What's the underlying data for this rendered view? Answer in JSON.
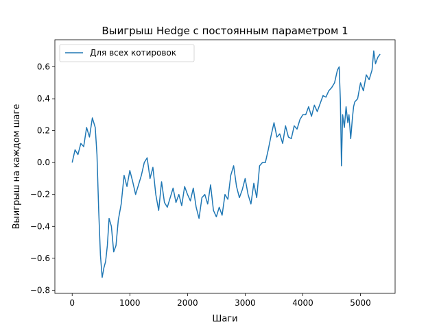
{
  "chart_data": {
    "type": "line",
    "title": "Выигрыш Hedge с постоянным параметром 1",
    "xlabel": "Шаги",
    "ylabel": "Выигрыш на каждом шаге",
    "xlim": [
      -300,
      5600
    ],
    "ylim": [
      -0.82,
      0.77
    ],
    "xticks": [
      0,
      1000,
      2000,
      3000,
      4000,
      5000
    ],
    "yticks": [
      -0.8,
      -0.6,
      -0.4,
      -0.2,
      0.0,
      0.2,
      0.4,
      0.6
    ],
    "ytick_labels": [
      "−0.8",
      "−0.6",
      "−0.4",
      "−0.2",
      "0.0",
      "0.2",
      "0.4",
      "0.6"
    ],
    "grid": false,
    "legend_position": "upper-left",
    "series": [
      {
        "name": "Для всех котировок",
        "color": "#1f77b4",
        "x": [
          0,
          50,
          100,
          150,
          200,
          250,
          300,
          350,
          400,
          430,
          460,
          490,
          520,
          550,
          580,
          610,
          640,
          680,
          720,
          760,
          800,
          850,
          900,
          950,
          1000,
          1050,
          1100,
          1150,
          1200,
          1250,
          1300,
          1350,
          1400,
          1450,
          1500,
          1550,
          1600,
          1650,
          1700,
          1750,
          1800,
          1850,
          1900,
          1950,
          2000,
          2050,
          2100,
          2150,
          2200,
          2250,
          2300,
          2350,
          2400,
          2450,
          2500,
          2550,
          2600,
          2650,
          2700,
          2750,
          2800,
          2850,
          2900,
          2950,
          3000,
          3050,
          3100,
          3150,
          3200,
          3250,
          3300,
          3350,
          3400,
          3450,
          3500,
          3550,
          3600,
          3650,
          3700,
          3750,
          3800,
          3850,
          3900,
          3950,
          4000,
          4050,
          4100,
          4150,
          4200,
          4250,
          4300,
          4350,
          4400,
          4450,
          4500,
          4550,
          4600,
          4630,
          4650,
          4660,
          4670,
          4690,
          4720,
          4750,
          4780,
          4800,
          4830,
          4860,
          4880,
          4900,
          4950,
          5000,
          5050,
          5100,
          5150,
          5200,
          5230,
          5260,
          5300,
          5340
        ],
        "values": [
          0.0,
          0.08,
          0.05,
          0.12,
          0.1,
          0.22,
          0.16,
          0.28,
          0.22,
          0.05,
          -0.3,
          -0.58,
          -0.72,
          -0.66,
          -0.62,
          -0.52,
          -0.35,
          -0.4,
          -0.56,
          -0.52,
          -0.36,
          -0.26,
          -0.08,
          -0.15,
          -0.05,
          -0.12,
          -0.2,
          -0.14,
          -0.08,
          0.0,
          0.03,
          -0.1,
          -0.03,
          -0.2,
          -0.3,
          -0.12,
          -0.25,
          -0.28,
          -0.22,
          -0.16,
          -0.25,
          -0.2,
          -0.27,
          -0.15,
          -0.2,
          -0.24,
          -0.16,
          -0.28,
          -0.35,
          -0.22,
          -0.2,
          -0.26,
          -0.14,
          -0.3,
          -0.34,
          -0.28,
          -0.33,
          -0.2,
          -0.23,
          -0.08,
          -0.02,
          -0.15,
          -0.22,
          -0.17,
          -0.1,
          -0.2,
          -0.26,
          -0.13,
          -0.22,
          -0.02,
          0.0,
          0.0,
          0.08,
          0.17,
          0.25,
          0.16,
          0.18,
          0.12,
          0.23,
          0.16,
          0.15,
          0.23,
          0.21,
          0.27,
          0.3,
          0.3,
          0.35,
          0.29,
          0.36,
          0.32,
          0.37,
          0.42,
          0.41,
          0.45,
          0.47,
          0.5,
          0.58,
          0.6,
          0.4,
          0.2,
          -0.02,
          0.3,
          0.22,
          0.35,
          0.25,
          0.3,
          0.15,
          0.28,
          0.35,
          0.38,
          0.4,
          0.5,
          0.45,
          0.55,
          0.52,
          0.58,
          0.7,
          0.62,
          0.66,
          0.68
        ]
      }
    ]
  }
}
